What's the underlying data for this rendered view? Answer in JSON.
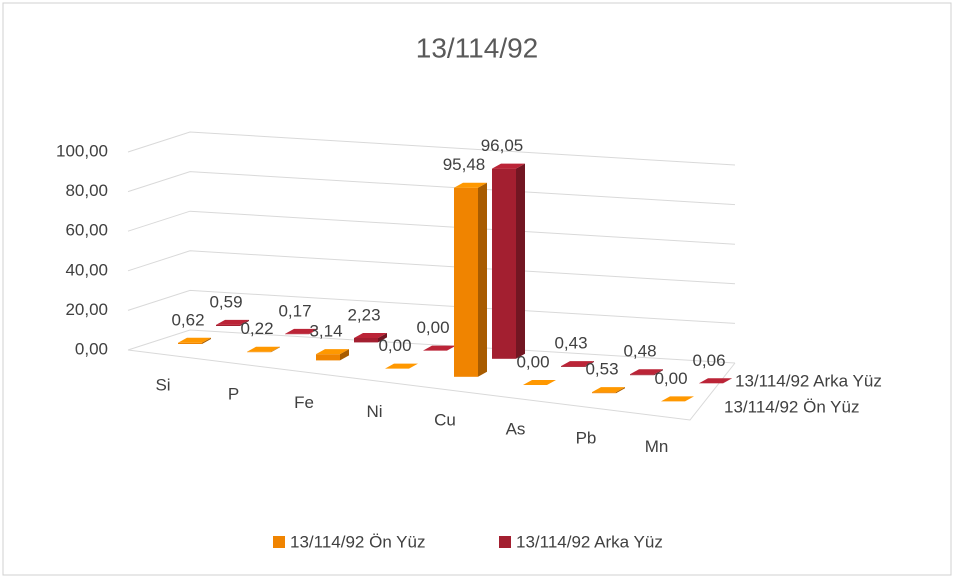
{
  "chart_data": {
    "type": "bar3d",
    "title": "13/114/92",
    "categories": [
      "Si",
      "P",
      "Fe",
      "Ni",
      "Cu",
      "As",
      "Pb",
      "Mn"
    ],
    "series": [
      {
        "name": "13/114/92 Ön Yüz",
        "color": "#f08400",
        "values": [
          0.62,
          0.22,
          3.14,
          0.0,
          95.48,
          0.0,
          0.53,
          0.0
        ],
        "value_labels": [
          "0,62",
          "0,22",
          "3,14",
          "0,00",
          "95,48",
          "0,00",
          "0,53",
          "0,00"
        ]
      },
      {
        "name": "13/114/92 Arka Yüz",
        "color": "#a31f30",
        "values": [
          0.59,
          0.17,
          2.23,
          0.0,
          96.05,
          0.43,
          0.48,
          0.06
        ],
        "value_labels": [
          "0,59",
          "0,17",
          "2,23",
          "0,00",
          "96,05",
          "0,43",
          "0,48",
          "0,06"
        ]
      }
    ],
    "ylim": [
      0,
      100
    ],
    "yticks": [
      {
        "value": 0,
        "label": "0,00"
      },
      {
        "value": 20,
        "label": "20,00"
      },
      {
        "value": 40,
        "label": "40,00"
      },
      {
        "value": 60,
        "label": "60,00"
      },
      {
        "value": 80,
        "label": "80,00"
      },
      {
        "value": 100,
        "label": "100,00"
      }
    ],
    "grid": true,
    "legend": "bottom"
  }
}
